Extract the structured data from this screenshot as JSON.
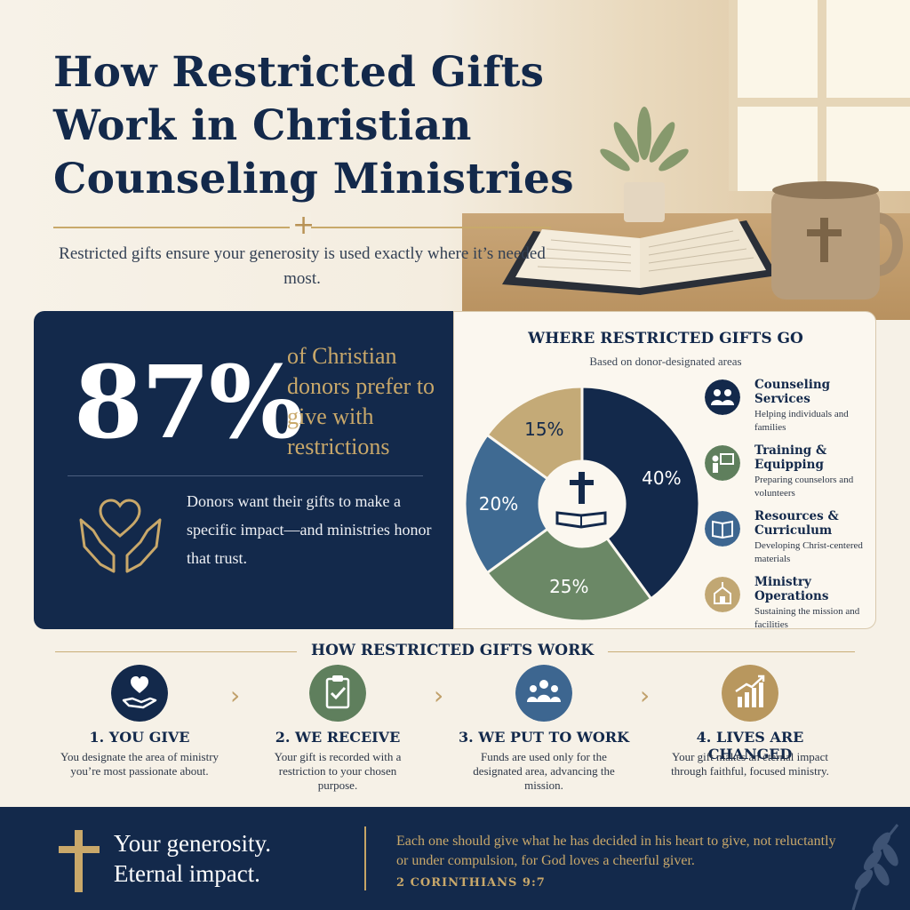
{
  "header": {
    "title": "How Restricted Gifts Work in Christian Counseling Ministries",
    "subtitle": "Restricted gifts ensure your generosity is used exactly where it’s needed most."
  },
  "stat": {
    "value": "87%",
    "text": "of Christian donors prefer to give with restrictions",
    "description": "Donors want their gifts to make a specific impact—and ministries honor that trust."
  },
  "chart": {
    "title": "WHERE RESTRICTED GIFTS GO",
    "subtitle": "Based on donor-designated areas",
    "legend": [
      {
        "name": "Counseling Services",
        "desc": "Helping individuals and families",
        "icon": "people-icon",
        "color": "#13294b"
      },
      {
        "name": "Training & Equipping",
        "desc": "Preparing counselors and volunteers",
        "icon": "teacher-icon",
        "color": "#5f7f5d"
      },
      {
        "name": "Resources & Curriculum",
        "desc": "Developing Christ-centered materials",
        "icon": "book-icon",
        "color": "#3d6690"
      },
      {
        "name": "Ministry Operations",
        "desc": "Sustaining the mission and facilities",
        "icon": "church-icon",
        "color": "#c1a773"
      }
    ]
  },
  "chart_data": {
    "type": "pie",
    "categories": [
      "Counseling Services",
      "Training & Equipping",
      "Resources & Curriculum",
      "Ministry Operations"
    ],
    "values": [
      40,
      25,
      20,
      15
    ],
    "labels": [
      "40%",
      "25%",
      "20%",
      "15%"
    ],
    "colors": [
      "#13294b",
      "#6b8866",
      "#3f6a92",
      "#c4aa77"
    ],
    "title": "WHERE RESTRICTED GIFTS GO",
    "subtitle": "Based on donor-designated areas"
  },
  "steps": {
    "title": "HOW RESTRICTED GIFTS WORK",
    "items": [
      {
        "title": "1. YOU GIVE",
        "desc": "You designate the area of ministry you’re most passionate about.",
        "icon": "heart-hand-icon",
        "color": "#13294b"
      },
      {
        "title": "2. WE RECEIVE",
        "desc": "Your gift is recorded with a restriction to your chosen purpose.",
        "icon": "clipboard-icon",
        "color": "#5f7f5d"
      },
      {
        "title": "3. WE PUT TO WORK",
        "desc": "Funds are used only for the designated area, advancing the mission.",
        "icon": "group-icon",
        "color": "#3d6690"
      },
      {
        "title": "4. LIVES ARE CHANGED",
        "desc": "Your gift makes an eternal impact through faithful, focused ministry.",
        "icon": "growth-chart-icon",
        "color": "#b8975e"
      }
    ]
  },
  "footer": {
    "tagline_line1": "Your generosity.",
    "tagline_line2": "Eternal impact.",
    "quote": "Each one should give what he has decided in his heart to give, not reluctantly or under compulsion, for God loves a cheerful giver.",
    "reference": "2 CORINTHIANS 9:7"
  }
}
